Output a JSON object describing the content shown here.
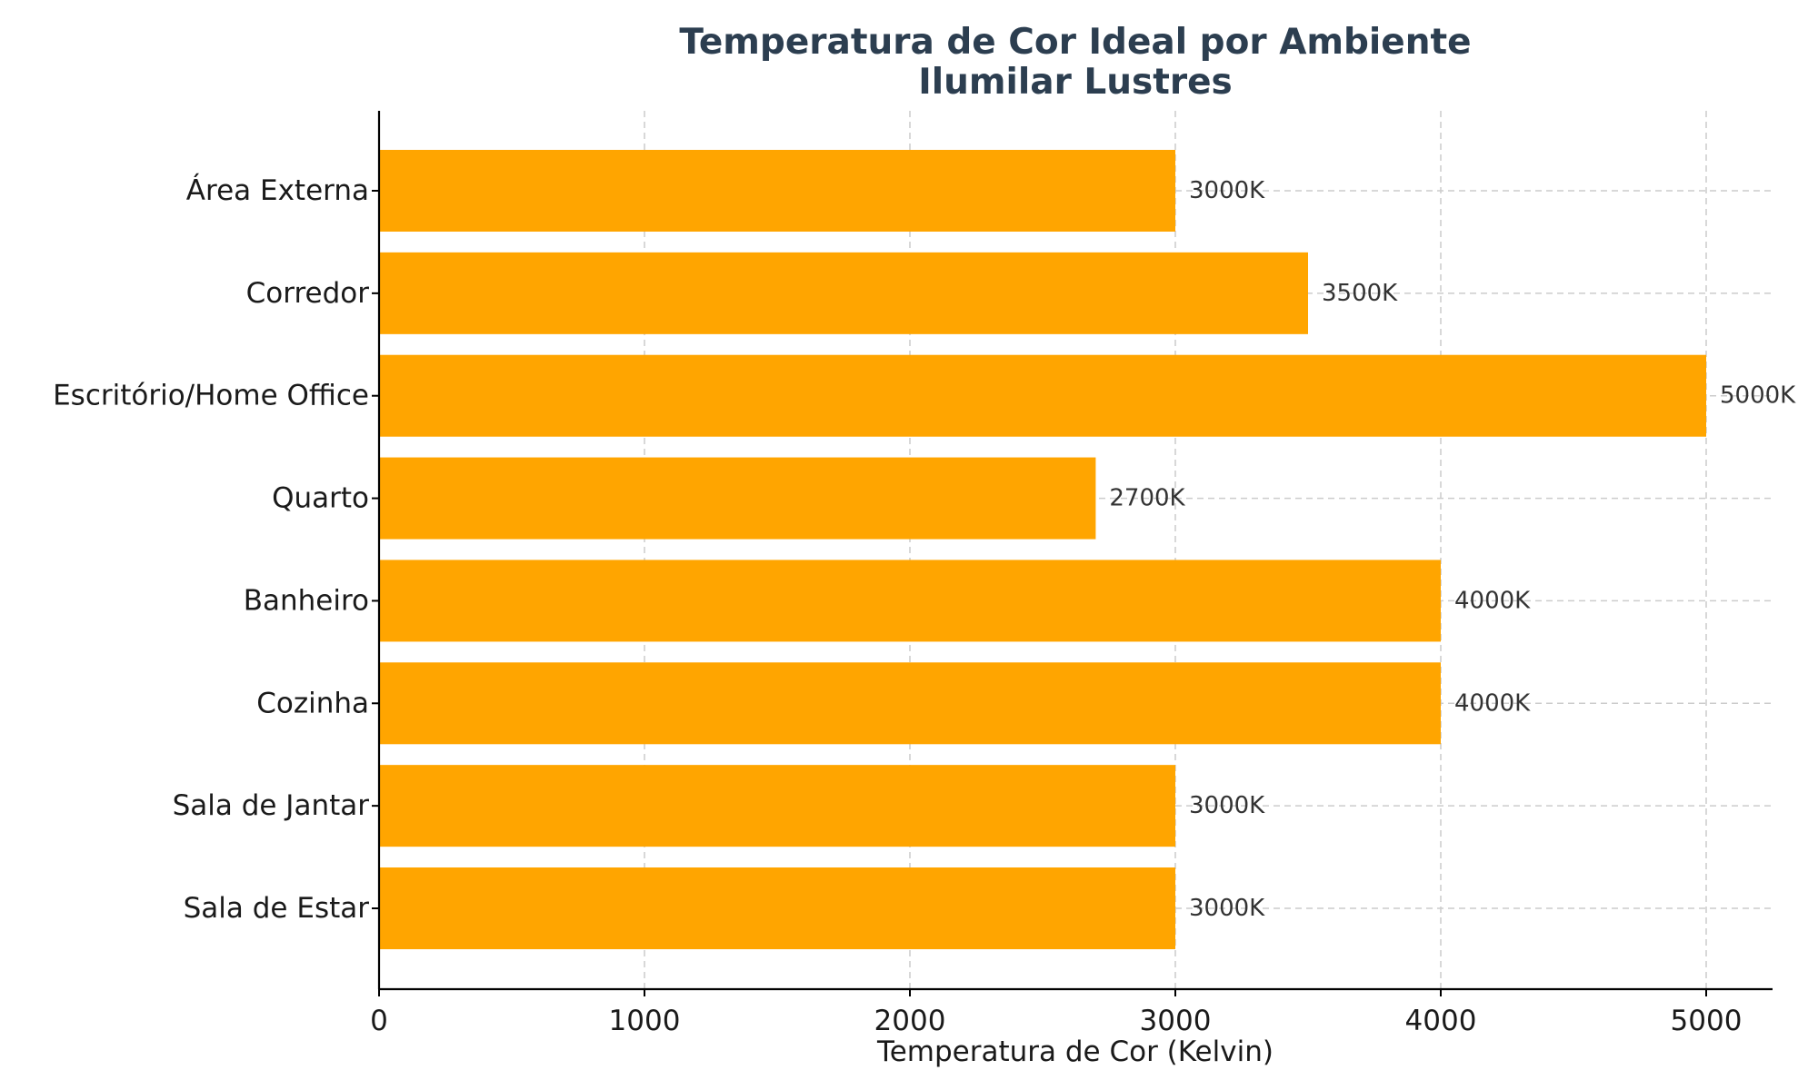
{
  "colors": {
    "bar": "#FFA500",
    "title": "#2c3e50"
  },
  "chart_data": {
    "type": "bar",
    "orientation": "horizontal",
    "title": "Temperatura de Cor Ideal por Ambiente",
    "subtitle": "Ilumilar Lustres",
    "xlabel": "Temperatura de Cor (Kelvin)",
    "ylabel": "",
    "xlim": [
      0,
      5250
    ],
    "xticks": [
      0,
      1000,
      2000,
      3000,
      4000,
      5000
    ],
    "grid": true,
    "categories": [
      "Área Externa",
      "Corredor",
      "Escritório/Home Office",
      "Quarto",
      "Banheiro",
      "Cozinha",
      "Sala de Jantar",
      "Sala de Estar"
    ],
    "values": [
      3000,
      3500,
      5000,
      2700,
      4000,
      4000,
      3000,
      3000
    ],
    "value_labels": [
      "3000K",
      "3500K",
      "5000K",
      "2700K",
      "4000K",
      "4000K",
      "3000K",
      "3000K"
    ]
  }
}
